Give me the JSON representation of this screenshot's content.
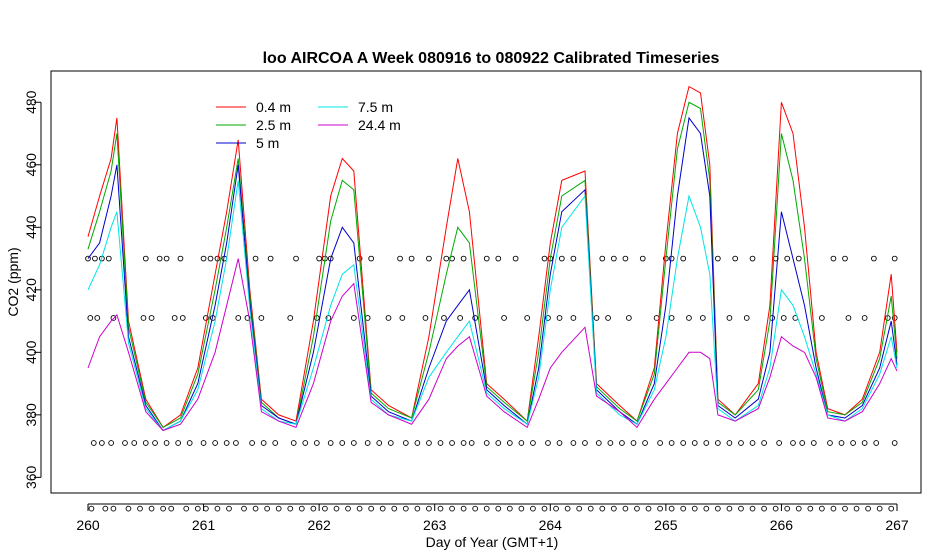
{
  "chart_data": {
    "type": "line",
    "title": "loo AIRCOA A  Week 080916 to 080922  Calibrated Timeseries",
    "xlabel": "Day of Year (GMT+1)",
    "ylabel": "CO2 (ppm)",
    "xlim": [
      260,
      267
    ],
    "ylim": [
      355,
      490
    ],
    "xticks": [
      "260",
      "261",
      "262",
      "263",
      "264",
      "265",
      "266",
      "267"
    ],
    "yticks": [
      "360",
      "380",
      "400",
      "420",
      "440",
      "460",
      "480"
    ],
    "legend_position": "top-left",
    "series": [
      {
        "name": "0.4 m",
        "color": "#ff0000",
        "x": [
          260.0,
          260.1,
          260.2,
          260.25,
          260.35,
          260.5,
          260.65,
          260.8,
          260.95,
          261.1,
          261.2,
          261.3,
          261.4,
          261.5,
          261.65,
          261.8,
          261.95,
          262.1,
          262.2,
          262.3,
          262.45,
          262.6,
          262.8,
          262.95,
          263.1,
          263.2,
          263.3,
          263.45,
          263.6,
          263.8,
          263.9,
          264.0,
          264.1,
          264.3,
          264.4,
          264.6,
          264.75,
          264.9,
          265.0,
          265.1,
          265.2,
          265.3,
          265.38,
          265.45,
          265.6,
          265.8,
          265.9,
          266.0,
          266.1,
          266.2,
          266.3,
          266.4,
          266.55,
          266.7,
          266.85,
          266.95,
          267.0
        ],
        "y": [
          437,
          450,
          462,
          475,
          410,
          385,
          376,
          380,
          395,
          425,
          445,
          468,
          420,
          385,
          380,
          378,
          410,
          450,
          462,
          458,
          388,
          383,
          379,
          405,
          440,
          462,
          445,
          390,
          385,
          378,
          405,
          435,
          455,
          458,
          390,
          383,
          378,
          395,
          435,
          470,
          485,
          483,
          460,
          385,
          380,
          390,
          415,
          480,
          470,
          440,
          400,
          382,
          380,
          385,
          400,
          425,
          400
        ]
      },
      {
        "name": "2.5 m",
        "color": "#00aa00",
        "x": [
          260.0,
          260.1,
          260.2,
          260.25,
          260.35,
          260.5,
          260.65,
          260.8,
          260.95,
          261.1,
          261.2,
          261.3,
          261.4,
          261.5,
          261.65,
          261.8,
          261.95,
          262.1,
          262.2,
          262.3,
          262.45,
          262.6,
          262.8,
          262.95,
          263.1,
          263.2,
          263.3,
          263.45,
          263.6,
          263.8,
          263.9,
          264.0,
          264.1,
          264.3,
          264.4,
          264.6,
          264.75,
          264.9,
          265.0,
          265.1,
          265.2,
          265.3,
          265.38,
          265.45,
          265.6,
          265.8,
          265.9,
          266.0,
          266.1,
          266.2,
          266.3,
          266.4,
          266.55,
          266.7,
          266.85,
          266.95,
          267.0
        ],
        "y": [
          433,
          445,
          458,
          470,
          408,
          384,
          376,
          379,
          393,
          420,
          440,
          462,
          418,
          384,
          379,
          377,
          405,
          442,
          455,
          452,
          387,
          382,
          379,
          400,
          425,
          440,
          435,
          389,
          384,
          378,
          400,
          430,
          450,
          455,
          389,
          382,
          378,
          393,
          430,
          465,
          480,
          478,
          455,
          384,
          380,
          388,
          410,
          470,
          455,
          430,
          398,
          381,
          380,
          384,
          398,
          418,
          398
        ]
      },
      {
        "name": "5 m",
        "color": "#0000cc",
        "x": [
          260.0,
          260.1,
          260.2,
          260.25,
          260.35,
          260.5,
          260.65,
          260.8,
          260.95,
          261.1,
          261.2,
          261.3,
          261.4,
          261.5,
          261.65,
          261.8,
          261.95,
          262.1,
          262.2,
          262.3,
          262.45,
          262.6,
          262.8,
          262.95,
          263.1,
          263.2,
          263.3,
          263.45,
          263.6,
          263.8,
          263.9,
          264.0,
          264.1,
          264.3,
          264.4,
          264.6,
          264.75,
          264.9,
          265.0,
          265.1,
          265.2,
          265.3,
          265.38,
          265.45,
          265.6,
          265.8,
          265.9,
          266.0,
          266.1,
          266.2,
          266.3,
          266.4,
          266.55,
          266.7,
          266.85,
          266.95,
          267.0
        ],
        "y": [
          430,
          435,
          450,
          460,
          405,
          383,
          375,
          378,
          390,
          415,
          435,
          460,
          416,
          383,
          379,
          377,
          400,
          430,
          440,
          435,
          386,
          381,
          378,
          395,
          410,
          415,
          420,
          388,
          383,
          377,
          395,
          425,
          445,
          452,
          388,
          381,
          377,
          390,
          415,
          450,
          475,
          470,
          450,
          383,
          379,
          385,
          400,
          445,
          430,
          415,
          395,
          380,
          379,
          383,
          395,
          410,
          396
        ]
      },
      {
        "name": "7.5 m",
        "color": "#00e5e5",
        "x": [
          260.0,
          260.1,
          260.2,
          260.25,
          260.35,
          260.5,
          260.65,
          260.8,
          260.95,
          261.1,
          261.2,
          261.3,
          261.4,
          261.5,
          261.65,
          261.8,
          261.95,
          262.1,
          262.2,
          262.3,
          262.45,
          262.6,
          262.8,
          262.95,
          263.1,
          263.2,
          263.3,
          263.45,
          263.6,
          263.8,
          263.9,
          264.0,
          264.1,
          264.3,
          264.4,
          264.6,
          264.75,
          264.9,
          265.0,
          265.1,
          265.2,
          265.3,
          265.38,
          265.45,
          265.6,
          265.8,
          265.9,
          266.0,
          266.1,
          266.2,
          266.3,
          266.4,
          266.55,
          266.7,
          266.85,
          266.95,
          267.0
        ],
        "y": [
          420,
          428,
          440,
          445,
          403,
          382,
          375,
          378,
          388,
          410,
          430,
          455,
          414,
          382,
          378,
          377,
          395,
          415,
          425,
          428,
          385,
          380,
          378,
          392,
          400,
          405,
          410,
          387,
          382,
          377,
          392,
          420,
          440,
          450,
          387,
          380,
          377,
          388,
          405,
          430,
          450,
          440,
          425,
          382,
          378,
          383,
          395,
          420,
          415,
          405,
          393,
          380,
          378,
          382,
          393,
          405,
          395
        ]
      },
      {
        "name": "24.4 m",
        "color": "#cc00cc",
        "x": [
          260.0,
          260.1,
          260.2,
          260.25,
          260.35,
          260.5,
          260.65,
          260.8,
          260.95,
          261.1,
          261.2,
          261.3,
          261.4,
          261.5,
          261.65,
          261.8,
          261.95,
          262.1,
          262.2,
          262.3,
          262.45,
          262.6,
          262.8,
          262.95,
          263.1,
          263.2,
          263.3,
          263.45,
          263.6,
          263.8,
          263.9,
          264.0,
          264.1,
          264.3,
          264.4,
          264.6,
          264.75,
          264.9,
          265.0,
          265.1,
          265.2,
          265.3,
          265.38,
          265.45,
          265.6,
          265.8,
          265.9,
          266.0,
          266.1,
          266.2,
          266.3,
          266.4,
          266.55,
          266.7,
          266.85,
          266.95,
          267.0
        ],
        "y": [
          395,
          405,
          410,
          412,
          400,
          381,
          375,
          377,
          385,
          400,
          415,
          430,
          410,
          381,
          378,
          376,
          390,
          410,
          418,
          422,
          384,
          380,
          377,
          385,
          398,
          402,
          405,
          386,
          381,
          376,
          385,
          395,
          400,
          408,
          386,
          381,
          376,
          385,
          390,
          395,
          400,
          400,
          398,
          380,
          378,
          382,
          392,
          405,
          402,
          400,
          392,
          379,
          378,
          381,
          390,
          398,
          394
        ]
      }
    ],
    "marker_rows": [
      {
        "y": 430,
        "x": [
          260.0,
          260.06,
          260.12,
          260.18,
          260.5,
          260.62,
          260.68,
          260.8,
          261.0,
          261.06,
          261.12,
          261.18,
          261.45,
          261.58,
          261.8,
          262.0,
          262.05,
          262.1,
          262.35,
          262.45,
          262.7,
          262.8,
          262.95,
          263.1,
          263.15,
          263.25,
          263.45,
          263.55,
          263.7,
          263.95,
          264.0,
          264.1,
          264.2,
          264.45,
          264.55,
          264.65,
          264.8,
          265.0,
          265.05,
          265.15,
          265.45,
          265.6,
          265.75,
          265.95,
          266.05,
          266.15,
          266.45,
          266.55,
          266.8,
          266.98
        ]
      },
      {
        "y": 411,
        "x": [
          260.02,
          260.08,
          260.22,
          260.48,
          260.55,
          260.75,
          260.82,
          261.02,
          261.08,
          261.3,
          261.38,
          261.5,
          261.75,
          261.98,
          262.08,
          262.3,
          262.42,
          262.6,
          262.72,
          262.92,
          263.08,
          263.22,
          263.35,
          263.6,
          263.8,
          263.98,
          264.08,
          264.2,
          264.4,
          264.5,
          264.68,
          264.92,
          265.05,
          265.2,
          265.32,
          265.55,
          265.7,
          265.92,
          266.02,
          266.12,
          266.35,
          266.58,
          266.72,
          266.92,
          266.98
        ]
      },
      {
        "y": 371,
        "x": [
          260.05,
          260.12,
          260.2,
          260.32,
          260.4,
          260.5,
          260.58,
          260.68,
          260.78,
          260.88,
          261.0,
          261.1,
          261.2,
          261.28,
          261.42,
          261.52,
          261.62,
          261.78,
          261.88,
          261.98,
          262.1,
          262.2,
          262.3,
          262.42,
          262.52,
          262.62,
          262.75,
          262.85,
          262.95,
          263.05,
          263.15,
          263.25,
          263.32,
          263.45,
          263.55,
          263.65,
          263.75,
          263.85,
          263.98,
          264.08,
          264.2,
          264.3,
          264.42,
          264.52,
          264.62,
          264.72,
          264.82,
          264.95,
          265.05,
          265.15,
          265.25,
          265.35,
          265.45,
          265.55,
          265.65,
          265.75,
          265.85,
          265.98,
          266.1,
          266.18,
          266.28,
          266.42,
          266.52,
          266.62,
          266.72,
          266.82,
          266.98
        ]
      },
      {
        "y": 350,
        "x": [
          260.03,
          260.15,
          260.22,
          260.35,
          260.45,
          260.55,
          260.65,
          260.72,
          260.85,
          260.95,
          261.02,
          261.12,
          261.22,
          261.35,
          261.45,
          261.55,
          261.65,
          261.75,
          261.85,
          261.95,
          262.05,
          262.15,
          262.25,
          262.35,
          262.45,
          262.55,
          262.65,
          262.75,
          262.85,
          262.95,
          263.05,
          263.15,
          263.25,
          263.35,
          263.45,
          263.55,
          263.65,
          263.75,
          263.85,
          263.95,
          264.05,
          264.15,
          264.25,
          264.35,
          264.45,
          264.55,
          264.65,
          264.75,
          264.85,
          264.95,
          265.05,
          265.15,
          265.25,
          265.35,
          265.45,
          265.55,
          265.65,
          265.75,
          265.85,
          265.95,
          266.05,
          266.15,
          266.25,
          266.35,
          266.45,
          266.55,
          266.65,
          266.75,
          266.85,
          266.95
        ]
      }
    ]
  }
}
